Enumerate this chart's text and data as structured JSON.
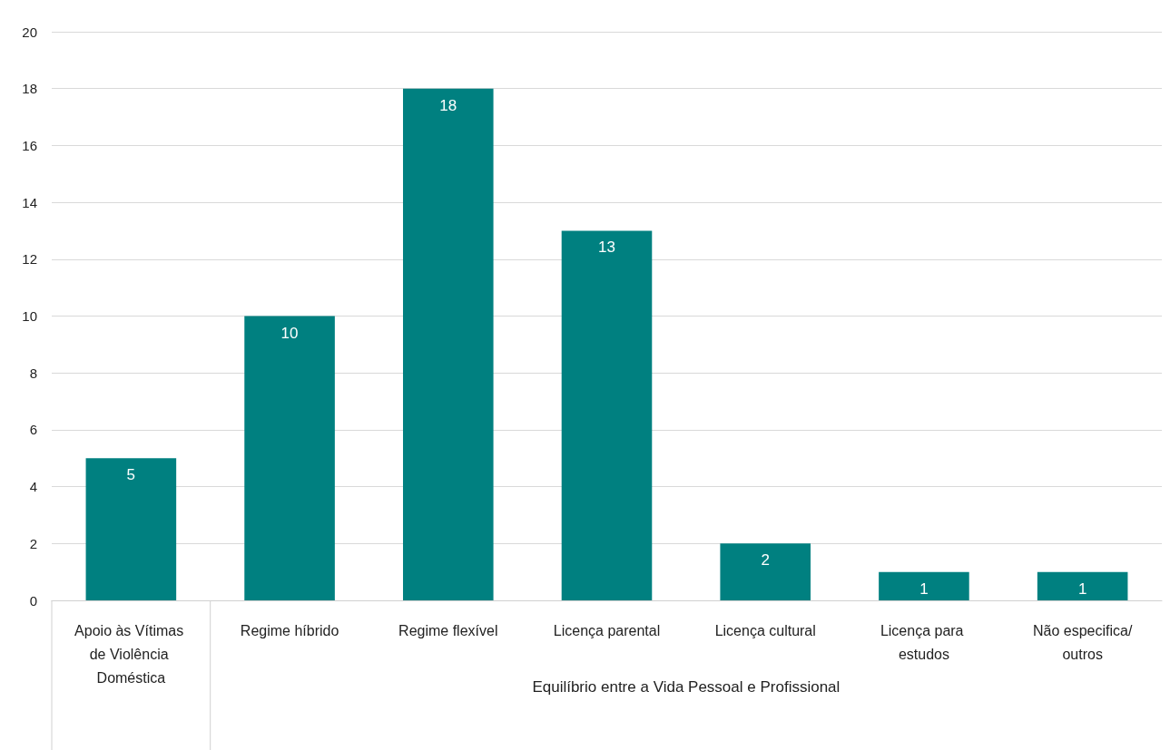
{
  "chart_data": {
    "type": "bar",
    "categories": [
      "Apoio às Vítimas de Violência Doméstica",
      "Regime híbrido",
      "Regime flexível",
      "Licença parental",
      "Licença cultural",
      "Licença para estudos",
      "Não especifica/outros"
    ],
    "values": [
      5,
      10,
      18,
      13,
      2,
      1,
      1
    ],
    "color": "#008080",
    "ylim": [
      0,
      20
    ],
    "yticks": [
      0,
      2,
      4,
      6,
      8,
      10,
      12,
      14,
      16,
      18,
      20
    ],
    "grid": "y",
    "data_labels": true,
    "annotations": [
      "Equilíbrio entre a Vida Pessoal e Profissional"
    ]
  }
}
